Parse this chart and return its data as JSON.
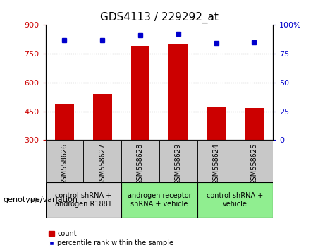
{
  "title": "GDS4113 / 229292_at",
  "categories": [
    "GSM558626",
    "GSM558627",
    "GSM558628",
    "GSM558629",
    "GSM558624",
    "GSM558625"
  ],
  "bar_values": [
    490,
    540,
    790,
    800,
    470,
    465
  ],
  "percentile_values": [
    87,
    87,
    91,
    92,
    84,
    85
  ],
  "ylim_left": [
    300,
    900
  ],
  "ylim_right": [
    0,
    100
  ],
  "yticks_left": [
    300,
    450,
    600,
    750,
    900
  ],
  "yticks_right": [
    0,
    25,
    50,
    75,
    100
  ],
  "hlines": [
    450,
    600,
    750
  ],
  "bar_color": "#cc0000",
  "dot_color": "#0000cc",
  "groups": [
    {
      "label": "control shRNA +\nandrogen R1881",
      "start": 0,
      "end": 1,
      "color": "#d3d3d3"
    },
    {
      "label": "androgen receptor\nshRNA + vehicle",
      "start": 2,
      "end": 3,
      "color": "#90ee90"
    },
    {
      "label": "control shRNA +\nvehicle",
      "start": 4,
      "end": 5,
      "color": "#90ee90"
    }
  ],
  "xlabel_text": "genotype/variation",
  "legend_count_label": "count",
  "legend_percentile_label": "percentile rank within the sample",
  "col_bg_color": "#c8c8c8",
  "title_fontsize": 11,
  "tick_fontsize": 8,
  "cat_fontsize": 7,
  "grp_fontsize": 7,
  "legend_fontsize": 7,
  "xlabel_fontsize": 8
}
